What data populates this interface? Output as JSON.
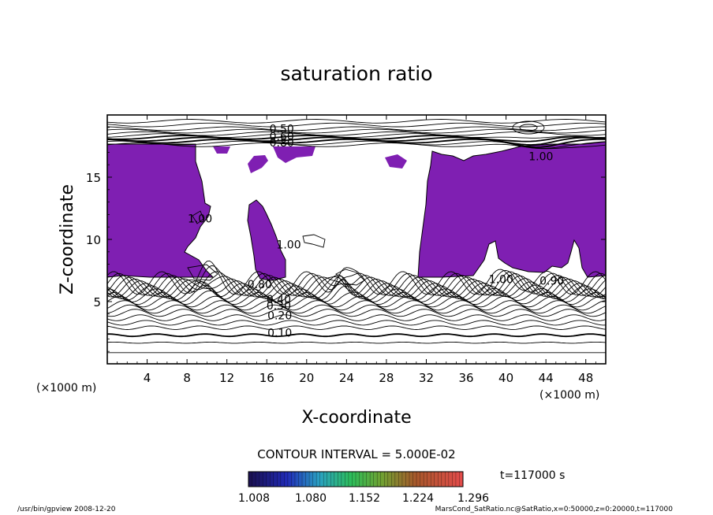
{
  "chart_data": {
    "type": "contour",
    "title": "saturation ratio",
    "xlabel": "X-coordinate",
    "ylabel": "Z-coordinate",
    "x_unit_label_left": "(×1000 m)",
    "x_unit_label_right": "(×1000 m)",
    "x_range": [
      0,
      50
    ],
    "y_range": [
      0,
      20
    ],
    "x_ticks": [
      4,
      8,
      12,
      16,
      20,
      24,
      28,
      32,
      36,
      40,
      44,
      48
    ],
    "y_ticks": [
      5,
      10,
      15
    ],
    "contour_interval_text": "CONTOUR INTERVAL = 5.000E-02",
    "time_text": "t=117000 s",
    "colorbar_ticks": [
      "1.008",
      "1.080",
      "1.152",
      "1.224",
      "1.296"
    ],
    "contour_labels": [
      {
        "text": "0.50",
        "x": 17.5,
        "y": 18.7
      },
      {
        "text": "0.60",
        "x": 17.5,
        "y": 18.1
      },
      {
        "text": "0.80",
        "x": 17.5,
        "y": 17.6
      },
      {
        "text": "1.00",
        "x": 43.5,
        "y": 16.5
      },
      {
        "text": "1.00",
        "x": 9.3,
        "y": 11.5
      },
      {
        "text": "1.00",
        "x": 18.2,
        "y": 9.4
      },
      {
        "text": "1.00",
        "x": 39.5,
        "y": 6.6
      },
      {
        "text": "0.90",
        "x": 44.6,
        "y": 6.5
      },
      {
        "text": "0.80",
        "x": 15.3,
        "y": 6.2
      },
      {
        "text": "0.40",
        "x": 17.2,
        "y": 5.0
      },
      {
        "text": "0.30",
        "x": 17.2,
        "y": 4.5
      },
      {
        "text": "0.20",
        "x": 17.3,
        "y": 3.7
      },
      {
        "text": "0.10",
        "x": 17.3,
        "y": 2.3
      }
    ],
    "legend": "none",
    "grid": false
  },
  "footer": {
    "left": "/usr/bin/gpview  2008-12-20",
    "right": "MarsCond_SatRatio.nc@SatRatio,x=0:50000,z=0:20000,t=117000"
  }
}
